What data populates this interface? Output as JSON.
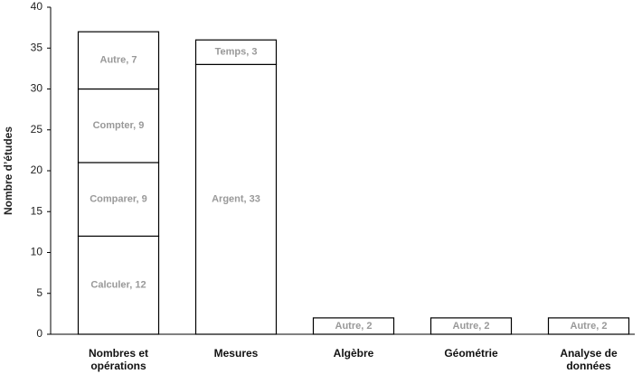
{
  "chart_data": {
    "type": "stacked-bar",
    "y_label": "Nombre d’études",
    "categories": [
      "Nombres et opérations",
      "Mesures",
      "Algèbre",
      "Géométrie",
      "Analyse de données"
    ],
    "series": [
      {
        "name": "Calculer",
        "color": "#ffffff",
        "values": [
          12,
          null,
          null,
          null,
          null
        ],
        "value_labels": [
          "Calculer, 12",
          null,
          null,
          null,
          null
        ]
      },
      {
        "name": "Comparer",
        "color": "#ffffff",
        "values": [
          9,
          null,
          null,
          null,
          null
        ],
        "value_labels": [
          "Comparer, 9",
          null,
          null,
          null,
          null
        ]
      },
      {
        "name": "Compter",
        "color": "#ffffff",
        "values": [
          9,
          null,
          null,
          null,
          null
        ],
        "value_labels": [
          "Compter, 9",
          null,
          null,
          null,
          null
        ]
      },
      {
        "name": "Argent",
        "color": "#ffffff",
        "values": [
          null,
          33,
          null,
          null,
          null
        ],
        "value_labels": [
          null,
          "Argent, 33",
          null,
          null,
          null
        ]
      },
      {
        "name": "Autre",
        "color": "#ffffff",
        "values": [
          7,
          null,
          2,
          2,
          2
        ],
        "value_labels": [
          "Autre, 7",
          null,
          "Autre, 2",
          "Autre, 2",
          "Autre, 2"
        ]
      },
      {
        "name": "Temps",
        "color": "#ffffff",
        "values": [
          null,
          3,
          null,
          null,
          null
        ],
        "value_labels": [
          null,
          "Temps, 3",
          null,
          null,
          null
        ]
      }
    ],
    "ylim": [
      0,
      40
    ],
    "yticks": [
      0,
      5,
      10,
      15,
      20,
      25,
      30,
      35,
      40
    ],
    "grid": false
  }
}
